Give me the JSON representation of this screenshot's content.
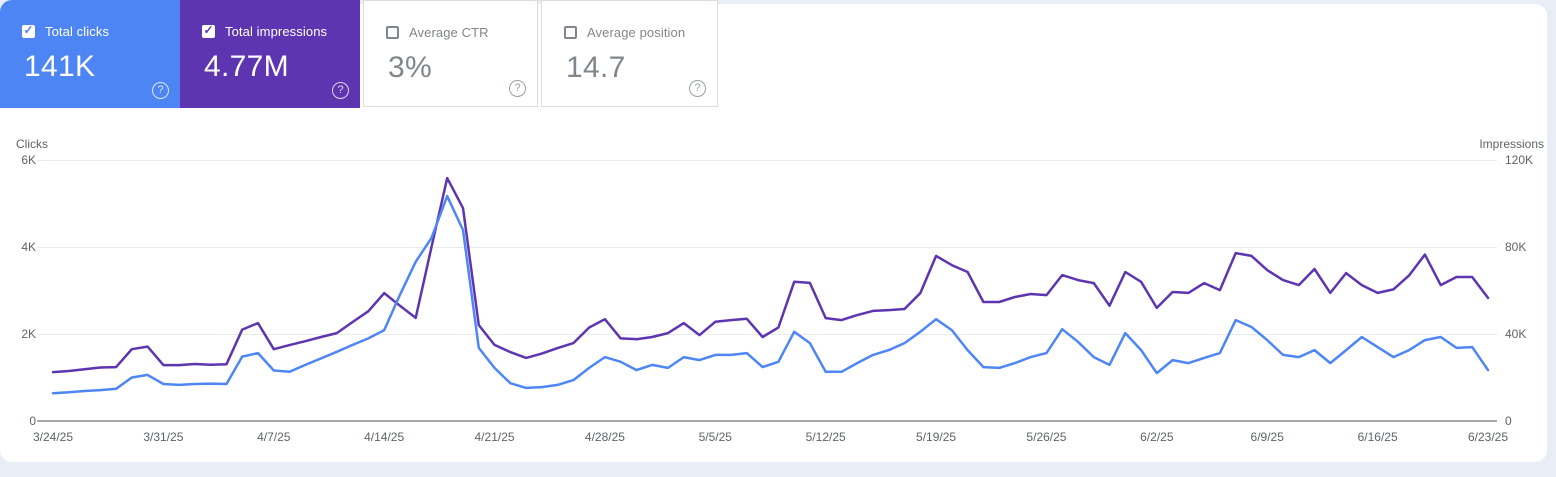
{
  "cards": [
    {
      "label": "Total clicks",
      "value": "141K",
      "checked": true,
      "color": "#4e85f4"
    },
    {
      "label": "Total impressions",
      "value": "4.77M",
      "checked": true,
      "color": "#5e35b1"
    },
    {
      "label": "Average CTR",
      "value": "3%",
      "checked": false,
      "color": "#80868b"
    },
    {
      "label": "Average position",
      "value": "14.7",
      "checked": false,
      "color": "#80868b"
    }
  ],
  "help_icon_glyph": "?",
  "checkmark_glyph": "✓",
  "chart_data": {
    "type": "line",
    "title": "",
    "grid": true,
    "left_axis": {
      "title": "Clicks",
      "max": 6000,
      "ticks": [
        "6K",
        "4K",
        "2K",
        "0"
      ],
      "tick_values": [
        6000,
        4000,
        2000,
        0
      ]
    },
    "right_axis": {
      "title": "Impressions",
      "max": 120000,
      "ticks": [
        "120K",
        "80K",
        "40K",
        "0"
      ],
      "tick_values": [
        120000,
        80000,
        40000,
        0
      ]
    },
    "x_tick_labels": [
      "3/24/25",
      "3/31/25",
      "4/7/25",
      "4/14/25",
      "4/21/25",
      "4/28/25",
      "5/5/25",
      "5/12/25",
      "5/19/25",
      "5/26/25",
      "6/2/25",
      "6/9/25",
      "6/16/25",
      "6/23/25"
    ],
    "x_tick_interval": 7,
    "dates": [
      "3/24/25",
      "3/25/25",
      "3/26/25",
      "3/27/25",
      "3/28/25",
      "3/29/25",
      "3/30/25",
      "3/31/25",
      "4/1/25",
      "4/2/25",
      "4/3/25",
      "4/4/25",
      "4/5/25",
      "4/6/25",
      "4/7/25",
      "4/8/25",
      "4/9/25",
      "4/10/25",
      "4/11/25",
      "4/12/25",
      "4/13/25",
      "4/14/25",
      "4/15/25",
      "4/16/25",
      "4/17/25",
      "4/18/25",
      "4/19/25",
      "4/20/25",
      "4/21/25",
      "4/22/25",
      "4/23/25",
      "4/24/25",
      "4/25/25",
      "4/26/25",
      "4/27/25",
      "4/28/25",
      "4/29/25",
      "4/30/25",
      "5/1/25",
      "5/2/25",
      "5/3/25",
      "5/4/25",
      "5/5/25",
      "5/6/25",
      "5/7/25",
      "5/8/25",
      "5/9/25",
      "5/10/25",
      "5/11/25",
      "5/12/25",
      "5/13/25",
      "5/14/25",
      "5/15/25",
      "5/16/25",
      "5/17/25",
      "5/18/25",
      "5/19/25",
      "5/20/25",
      "5/21/25",
      "5/22/25",
      "5/23/25",
      "5/24/25",
      "5/25/25",
      "5/26/25",
      "5/27/25",
      "5/28/25",
      "5/29/25",
      "5/30/25",
      "5/31/25",
      "6/1/25",
      "6/2/25",
      "6/3/25",
      "6/4/25",
      "6/5/25",
      "6/6/25",
      "6/7/25",
      "6/8/25",
      "6/9/25",
      "6/10/25",
      "6/11/25",
      "6/12/25",
      "6/13/25",
      "6/14/25",
      "6/15/25",
      "6/16/25",
      "6/17/25",
      "6/18/25",
      "6/19/25",
      "6/20/25",
      "6/21/25",
      "6/22/25",
      "6/23/25"
    ],
    "series": [
      {
        "name": "Clicks",
        "axis": "left",
        "color": "#4e86f5",
        "values": [
          640,
          660,
          690,
          710,
          740,
          1000,
          1060,
          850,
          830,
          850,
          860,
          850,
          1480,
          1560,
          1160,
          1130,
          1290,
          1440,
          1590,
          1750,
          1900,
          2090,
          2900,
          3660,
          4210,
          5170,
          4390,
          1680,
          1220,
          870,
          760,
          780,
          830,
          940,
          1220,
          1470,
          1360,
          1170,
          1290,
          1220,
          1470,
          1400,
          1520,
          1520,
          1560,
          1240,
          1360,
          2050,
          1790,
          1130,
          1130,
          1330,
          1520,
          1630,
          1790,
          2050,
          2340,
          2090,
          1630,
          1240,
          1220,
          1330,
          1470,
          1560,
          2110,
          1820,
          1470,
          1290,
          2020,
          1630,
          1100,
          1400,
          1330,
          1450,
          1560,
          2320,
          2160,
          1860,
          1520,
          1470,
          1630,
          1330,
          1630,
          1930,
          1700,
          1470,
          1630,
          1860,
          1930,
          1680,
          1700,
          1170
        ]
      },
      {
        "name": "Impressions",
        "axis": "right",
        "color": "#5e35b1",
        "values": [
          22500,
          23000,
          23800,
          24600,
          24800,
          33000,
          34200,
          25700,
          25700,
          26200,
          25900,
          26100,
          42000,
          45000,
          33000,
          34900,
          36700,
          38600,
          40400,
          45500,
          50500,
          58800,
          53000,
          47400,
          80000,
          111700,
          97900,
          44100,
          35000,
          31700,
          29000,
          31000,
          33500,
          35800,
          43000,
          46800,
          38000,
          37600,
          38600,
          40400,
          45000,
          39500,
          45600,
          46400,
          47000,
          38600,
          43000,
          64000,
          63500,
          47300,
          46400,
          48700,
          50600,
          51000,
          51500,
          58800,
          75900,
          71700,
          68500,
          54700,
          54700,
          57000,
          58400,
          57900,
          67100,
          64800,
          63400,
          53000,
          68500,
          64000,
          52000,
          59300,
          58900,
          63400,
          60200,
          77200,
          75900,
          69400,
          64800,
          62500,
          69900,
          58900,
          68000,
          62500,
          58900,
          60500,
          67000,
          76500,
          62500,
          66200,
          66200,
          56600
        ]
      }
    ]
  }
}
